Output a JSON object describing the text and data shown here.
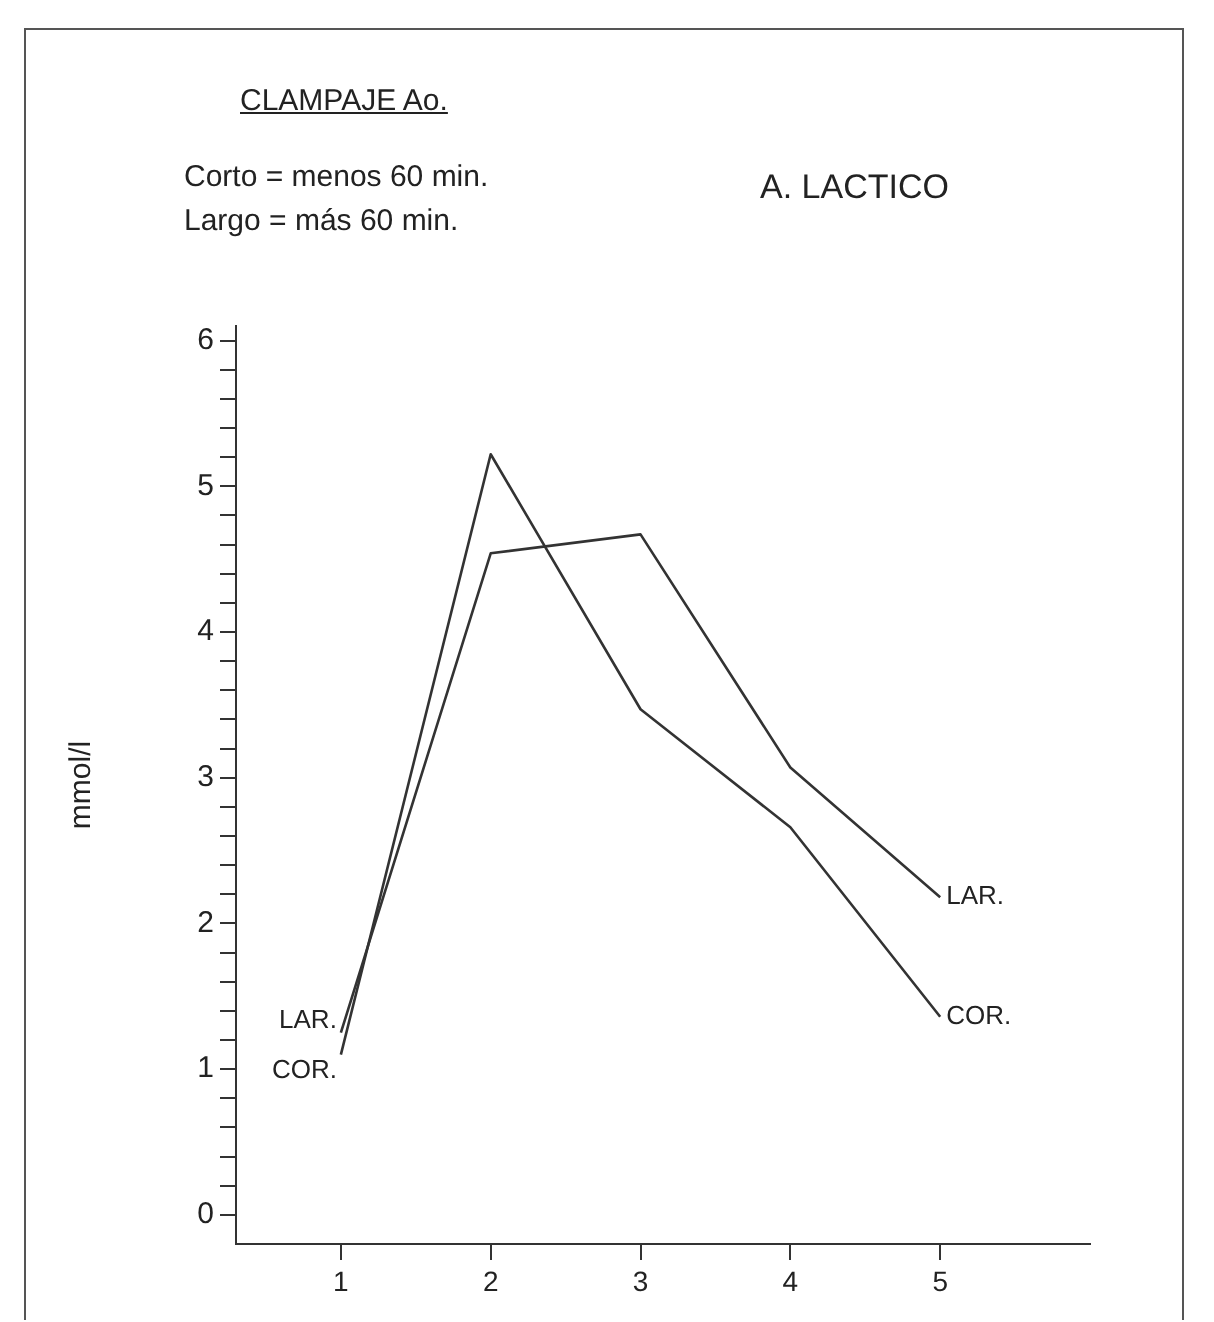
{
  "chart_data": {
    "type": "line",
    "title": "A. LACTICO",
    "ylabel": "mmol/l",
    "annotations": [
      "CLAMPAJE Ao.",
      "Corto = menos 60 min.",
      "Largo = más 60 min.",
      {
        "text": "LAR.",
        "x": 1,
        "y": 1.25
      },
      {
        "text": "COR.",
        "x": 1,
        "y": 1.1
      }
    ],
    "x": [
      1,
      2,
      3,
      4,
      5
    ],
    "series": [
      {
        "name": "LAR.",
        "color": "#333333",
        "values": [
          1.25,
          4.54,
          4.67,
          3.07,
          2.18
        ]
      },
      {
        "name": "COR.",
        "color": "#333333",
        "values": [
          1.1,
          5.22,
          3.47,
          2.66,
          1.36
        ]
      }
    ],
    "xlim": [
      0.3,
      6
    ],
    "xticks": [
      1,
      2,
      3,
      4,
      5
    ],
    "ylim": [
      -0.2,
      6.1
    ],
    "yticks": [
      0,
      {
        "value": 0.2,
        "label": null
      },
      {
        "value": 0.4,
        "label": null
      },
      {
        "value": 0.6,
        "label": null
      },
      {
        "value": 0.8,
        "label": null
      },
      1,
      {
        "value": 1.2,
        "label": null
      },
      {
        "value": 1.4,
        "label": null
      },
      {
        "value": 1.6,
        "label": null
      },
      {
        "value": 1.8,
        "label": null
      },
      2,
      {
        "value": 2.2,
        "label": null
      },
      {
        "value": 2.4,
        "label": null
      },
      {
        "value": 2.6,
        "label": null
      },
      {
        "value": 2.8,
        "label": null
      },
      3,
      {
        "value": 3.2,
        "label": null
      },
      {
        "value": 3.4,
        "label": null
      },
      {
        "value": 3.6,
        "label": null
      },
      {
        "value": 3.8,
        "label": null
      },
      4,
      {
        "value": 4.2,
        "label": null
      },
      {
        "value": 4.4,
        "label": null
      },
      {
        "value": 4.6,
        "label": null
      },
      {
        "value": 4.8,
        "label": null
      },
      5,
      {
        "value": 5.2,
        "label": null
      },
      {
        "value": 5.4,
        "label": null
      },
      {
        "value": 5.6,
        "label": null
      },
      {
        "value": 5.8,
        "label": null
      },
      6
    ],
    "grid": false,
    "legend": false,
    "marker": "none",
    "line_style": "solid"
  }
}
